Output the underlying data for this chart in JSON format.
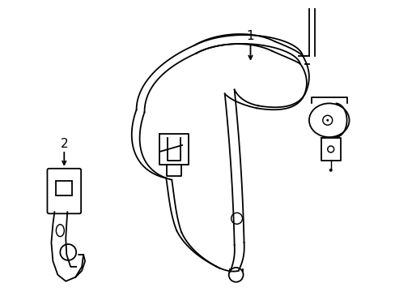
{
  "background_color": "#ffffff",
  "line_color": "#000000",
  "line_width": 1.3,
  "label1_text": "1",
  "label2_text": "2"
}
